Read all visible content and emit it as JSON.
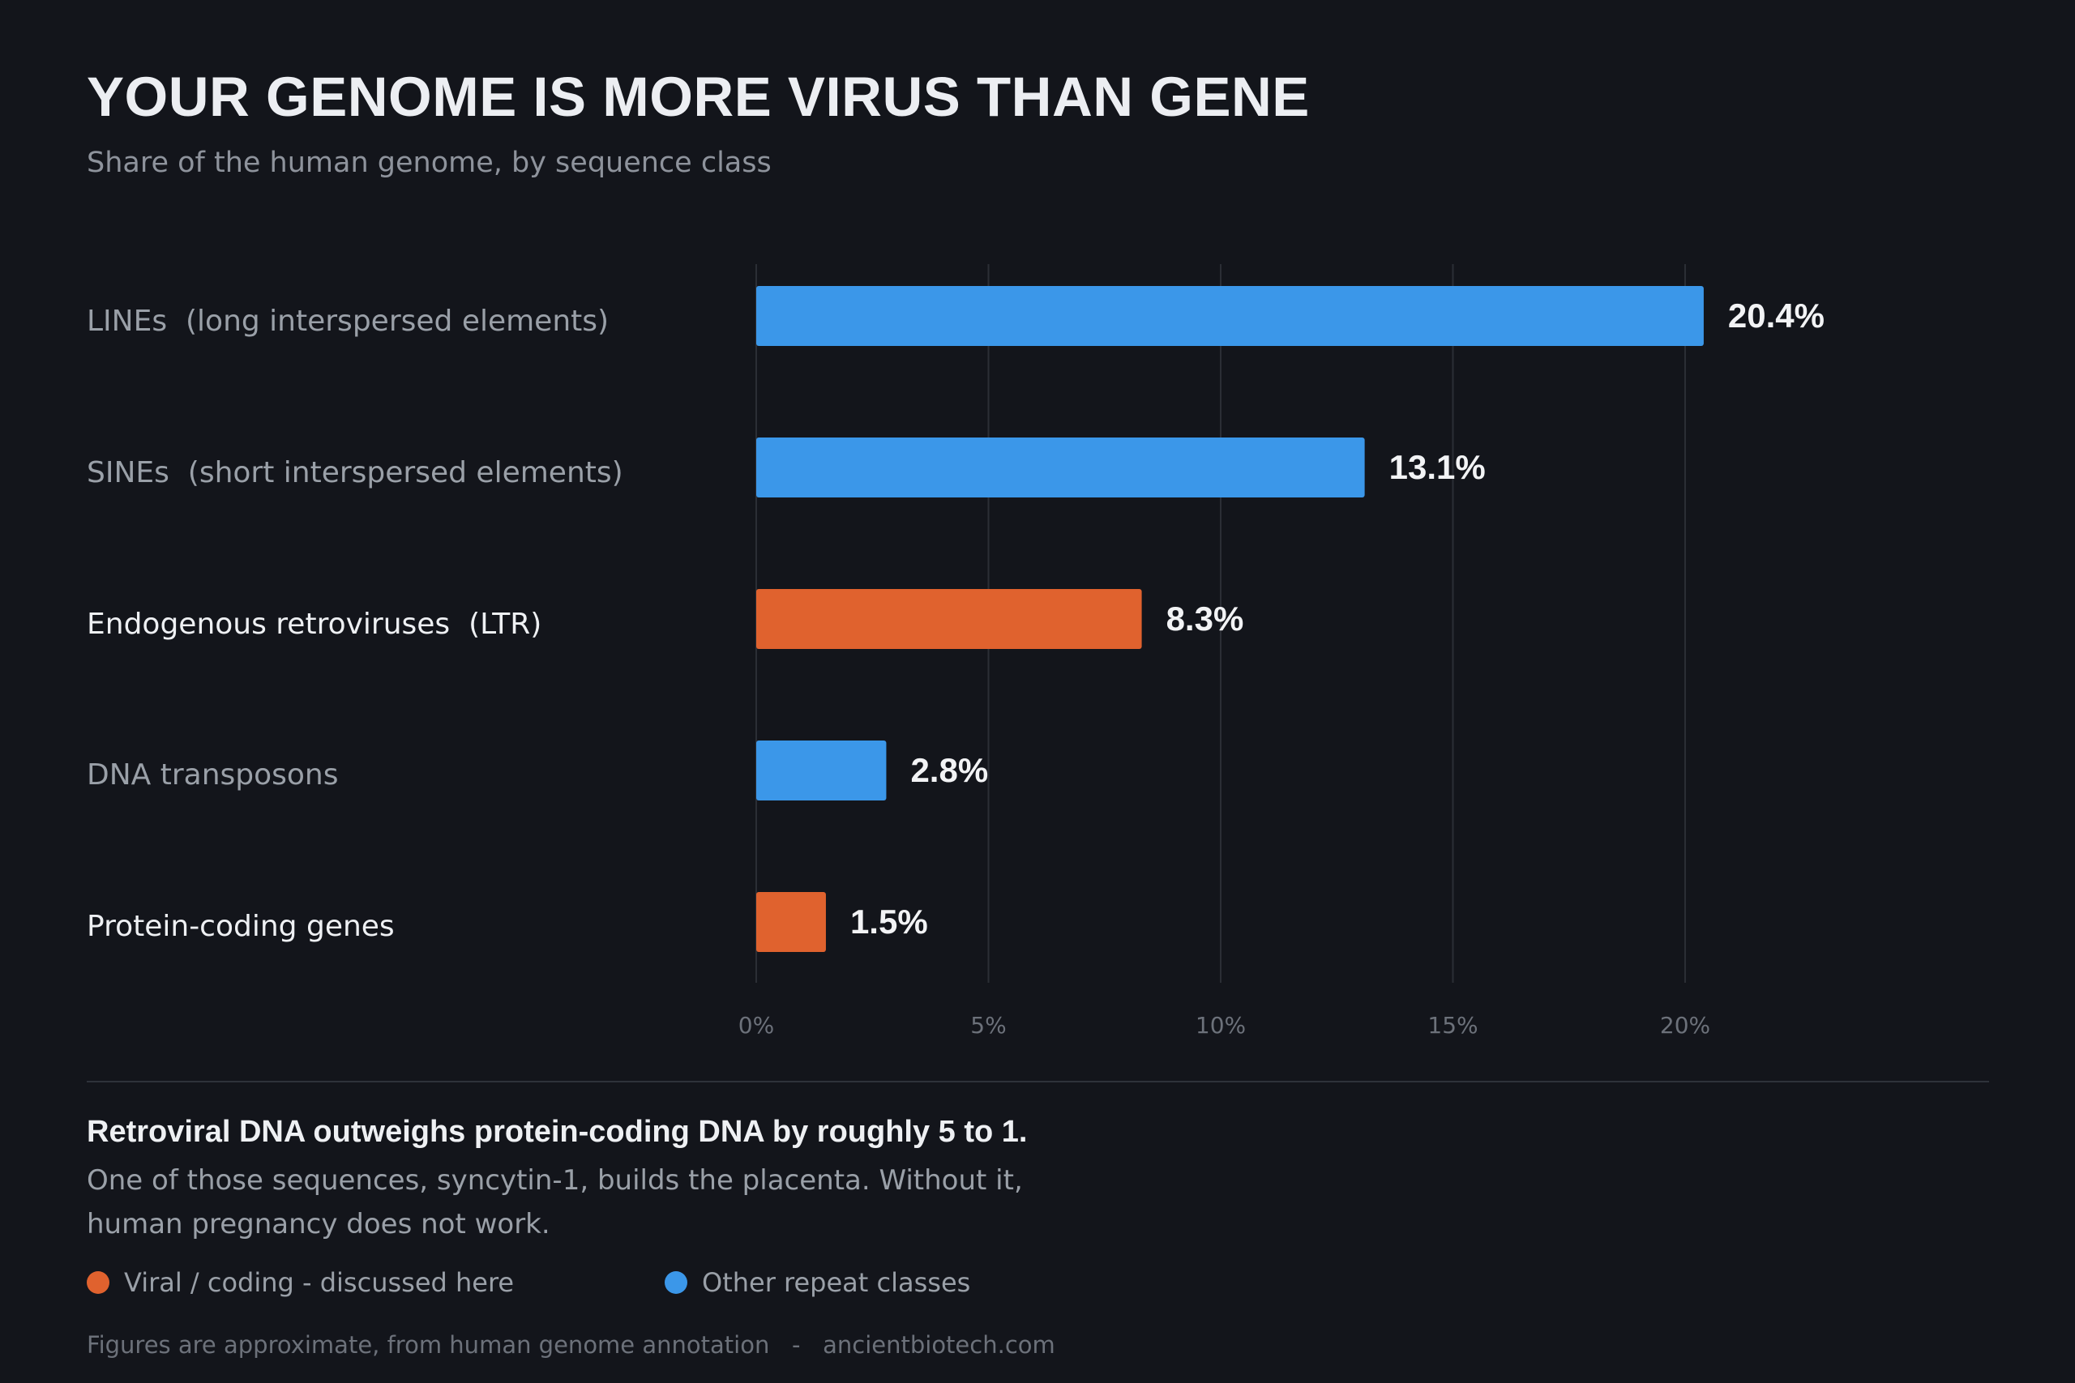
{
  "colors": {
    "viral_coding": "#e0622e",
    "other_repeat": "#3b97e9",
    "background": "#13151b",
    "grid": "#2b2e35"
  },
  "chart_data": {
    "type": "bar",
    "orientation": "horizontal",
    "title": "YOUR GENOME IS MORE VIRUS THAN GENE",
    "subtitle": "Share of the human genome, by sequence class",
    "categories": [
      "LINEs  (long interspersed elements)",
      "SINEs  (short interspersed elements)",
      "Endogenous retroviruses  (LTR)",
      "DNA transposons",
      "Protein-coding genes"
    ],
    "values": [
      20.4,
      13.1,
      8.3,
      2.8,
      1.5
    ],
    "value_labels": [
      "20.4%",
      "13.1%",
      "8.3%",
      "2.8%",
      "1.5%"
    ],
    "groups": [
      "other",
      "other",
      "viral_coding",
      "other",
      "viral_coding"
    ],
    "x_ticks": [
      0,
      5,
      10,
      15,
      20
    ],
    "x_tick_labels": [
      "0%",
      "5%",
      "10%",
      "15%",
      "20%"
    ],
    "xlim": [
      0,
      20
    ],
    "grid": "vertical",
    "legend": [
      {
        "key": "viral_coding",
        "label": "Viral / coding - discussed here"
      },
      {
        "key": "other",
        "label": "Other repeat classes"
      }
    ],
    "legend_placement": "bottom-left"
  },
  "takeaway": {
    "headline": "Retroviral DNA outweighs protein-coding DNA by roughly 5 to 1.",
    "line1": "One of those sequences, syncytin-1, builds the placenta. Without it,",
    "line2": "human pregnancy does not work."
  },
  "footer": {
    "text": "Figures are approximate, from human genome annotation   -   ancientbiotech.com"
  }
}
